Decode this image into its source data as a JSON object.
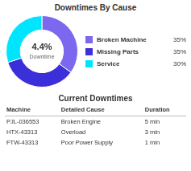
{
  "chart_data": [
    {
      "type": "doughnut",
      "title": "Downtimes By Cause",
      "categories": [
        "Broken Machine",
        "Missing Parts",
        "Service"
      ],
      "values": [
        35,
        35,
        30
      ],
      "value_labels": [
        "35%",
        "35%",
        "30%"
      ],
      "colors": [
        "#7B68EE",
        "#3B2FD9",
        "#00E5FF"
      ],
      "annotations": [
        "4.4%",
        "Downtime"
      ],
      "legend": "right"
    },
    {
      "type": "table",
      "title": "Current Downtimes",
      "columns": [
        "Machine",
        "Detailed Cause",
        "Duration"
      ],
      "rows": [
        [
          "PJL-036553",
          "Broken Engine",
          "5 min"
        ],
        [
          "HTX-43313",
          "Overload",
          "3 min"
        ],
        [
          "FTW-43313",
          "Poor Power Supply",
          "1 min"
        ]
      ]
    }
  ]
}
